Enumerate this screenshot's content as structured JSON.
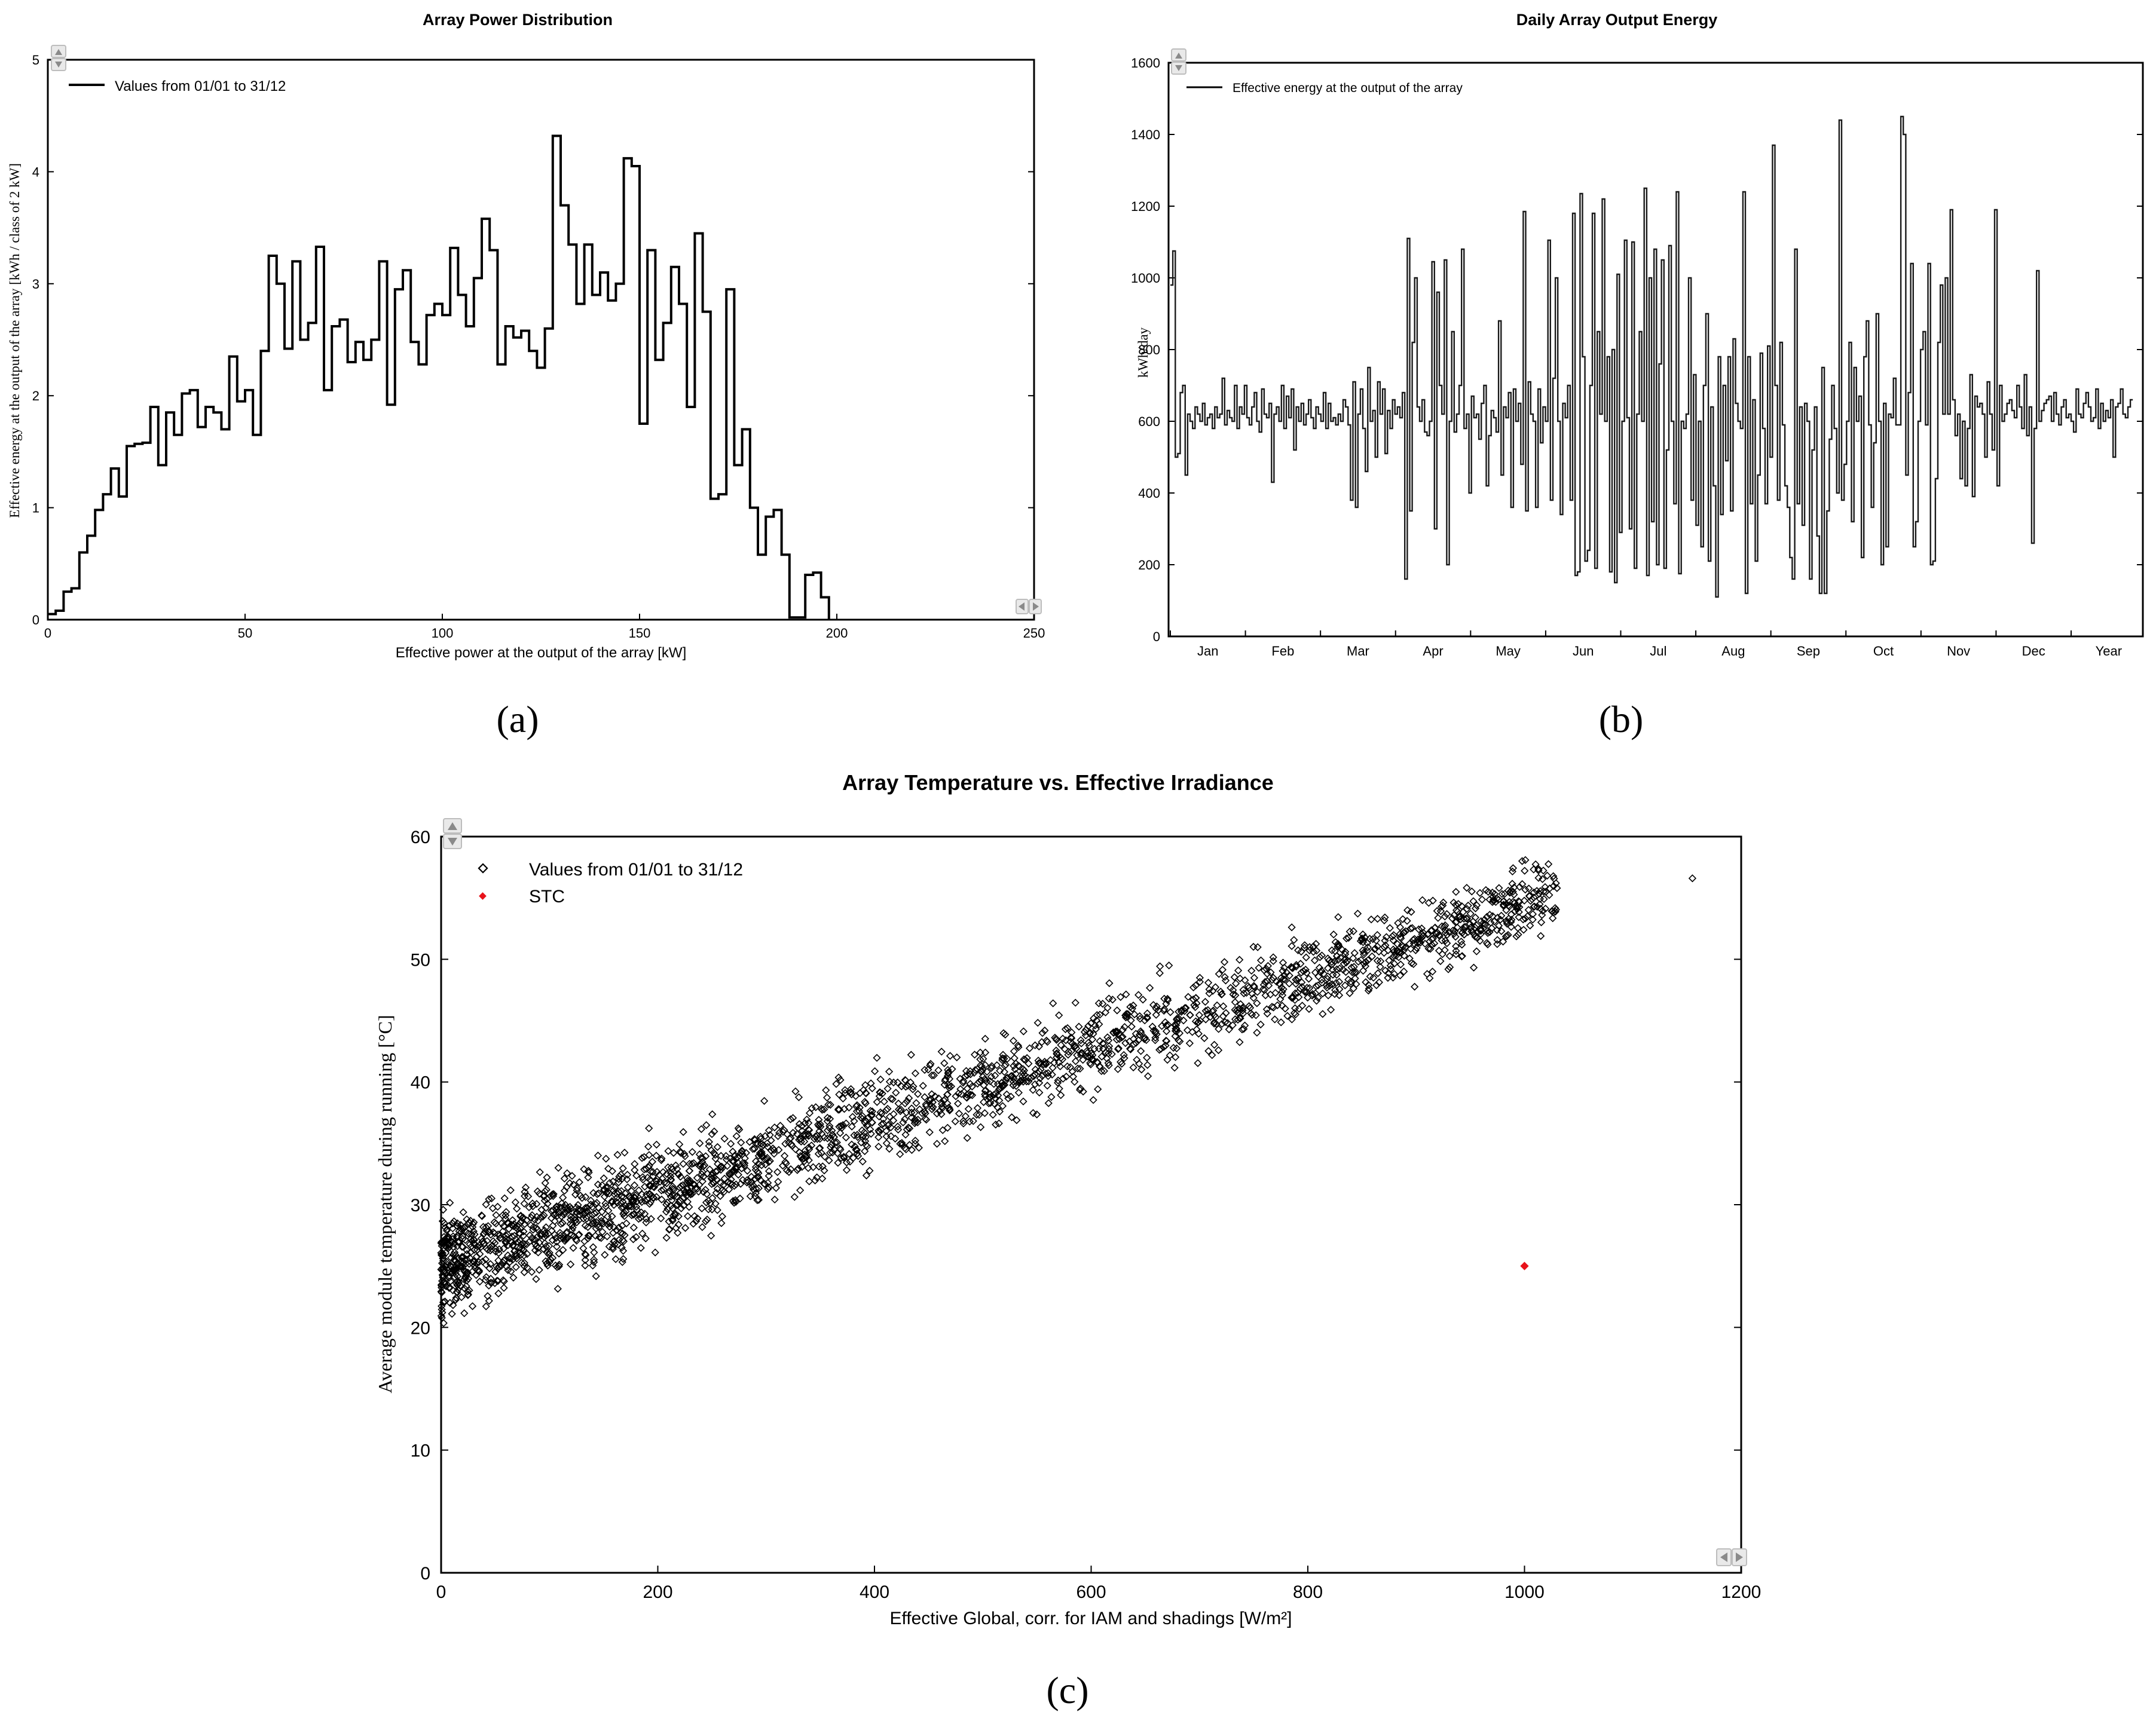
{
  "chart_data": [
    {
      "type": "histogram",
      "title": "Array Power Distribution",
      "xlabel": "Effective power at the output of the array [kW]",
      "ylabel": "Effective energy at the output of the array [kWh / class of 2 kW]",
      "xlim": [
        0,
        250
      ],
      "ylim": [
        0,
        5
      ],
      "xticks": [
        0,
        50,
        100,
        150,
        200,
        250
      ],
      "yticks": [
        0,
        1,
        2,
        3,
        4,
        5
      ],
      "legend": "Values from 01/01 to 31/12",
      "legend_position": "top-left",
      "bin_width": 2,
      "x_start": 0,
      "values": [
        0.05,
        0.08,
        0.25,
        0.28,
        0.6,
        0.75,
        0.98,
        1.12,
        1.35,
        1.1,
        1.55,
        1.57,
        1.58,
        1.9,
        1.38,
        1.85,
        1.65,
        2.02,
        2.05,
        1.72,
        1.9,
        1.85,
        1.7,
        2.35,
        1.95,
        2.05,
        1.65,
        2.4,
        3.25,
        3.0,
        2.42,
        3.2,
        2.5,
        2.65,
        3.33,
        2.05,
        2.62,
        2.68,
        2.3,
        2.48,
        2.32,
        2.5,
        3.2,
        1.92,
        2.95,
        3.12,
        2.48,
        2.28,
        2.72,
        2.82,
        2.72,
        3.32,
        2.9,
        2.62,
        3.05,
        3.58,
        3.3,
        2.28,
        2.62,
        2.52,
        2.58,
        2.4,
        2.25,
        2.6,
        4.32,
        3.7,
        3.35,
        2.82,
        3.35,
        2.9,
        3.1,
        2.85,
        3.0,
        4.12,
        4.05,
        1.75,
        3.3,
        2.32,
        2.65,
        3.15,
        2.82,
        1.9,
        3.45,
        2.75,
        1.08,
        1.12,
        2.95,
        1.38,
        1.7,
        1.0,
        0.58,
        0.92,
        0.98,
        0.58,
        0.02,
        0.02,
        0.4,
        0.42,
        0.2
      ],
      "line_color": "#000000"
    },
    {
      "type": "line",
      "title": "Daily Array Output Energy",
      "xlabel": "",
      "ylabel": "kWh/day",
      "legend": "Effective energy at the output of the array",
      "legend_position": "top-left",
      "ylim": [
        0,
        1600
      ],
      "yticks": [
        0,
        200,
        400,
        600,
        800,
        1000,
        1200,
        1400,
        1600
      ],
      "month_labels": [
        "Jan",
        "Feb",
        "Mar",
        "Apr",
        "May",
        "Jun",
        "Jul",
        "Aug",
        "Sep",
        "Oct",
        "Nov",
        "Dec",
        "Year"
      ],
      "x_unit": "day of year",
      "values": [
        980,
        1075,
        500,
        510,
        680,
        700,
        450,
        620,
        600,
        580,
        640,
        620,
        600,
        650,
        590,
        610,
        620,
        580,
        640,
        610,
        620,
        720,
        590,
        630,
        610,
        600,
        700,
        580,
        640,
        620,
        700,
        610,
        590,
        640,
        680,
        600,
        570,
        690,
        620,
        610,
        650,
        430,
        620,
        640,
        600,
        700,
        580,
        670,
        610,
        690,
        520,
        640,
        600,
        650,
        590,
        620,
        660,
        610,
        580,
        640,
        620,
        600,
        680,
        580,
        650,
        600,
        610,
        590,
        620,
        600,
        660,
        640,
        590,
        380,
        710,
        360,
        620,
        690,
        580,
        460,
        750,
        600,
        630,
        500,
        710,
        620,
        690,
        510,
        630,
        580,
        660,
        620,
        640,
        610,
        680,
        160,
        1110,
        350,
        820,
        1000,
        640,
        600,
        660,
        570,
        560,
        600,
        1045,
        300,
        960,
        700,
        620,
        1050,
        200,
        600,
        850,
        570,
        620,
        700,
        1080,
        580,
        620,
        400,
        670,
        610,
        620,
        550,
        650,
        700,
        420,
        560,
        630,
        610,
        570,
        880,
        450,
        640,
        610,
        680,
        360,
        690,
        600,
        650,
        480,
        1185,
        350,
        710,
        620,
        600,
        360,
        690,
        540,
        640,
        600,
        1105,
        380,
        720,
        1000,
        600,
        340,
        650,
        610,
        700,
        380,
        1180,
        170,
        180,
        1235,
        780,
        210,
        240,
        700,
        1180,
        190,
        850,
        620,
        1220,
        600,
        780,
        180,
        800,
        150,
        1010,
        290,
        600,
        1105,
        610,
        300,
        1100,
        190,
        620,
        850,
        600,
        1250,
        170,
        1000,
        320,
        1080,
        200,
        760,
        1050,
        190,
        520,
        1090,
        600,
        370,
        1240,
        175,
        600,
        580,
        620,
        1000,
        380,
        730,
        310,
        600,
        250,
        700,
        900,
        210,
        640,
        420,
        110,
        780,
        340,
        700,
        490,
        780,
        350,
        830,
        650,
        600,
        580,
        1240,
        120,
        780,
        370,
        660,
        210,
        450,
        790,
        580,
        370,
        810,
        500,
        1370,
        700,
        380,
        820,
        590,
        420,
        360,
        220,
        160,
        1080,
        370,
        640,
        310,
        650,
        600,
        160,
        520,
        640,
        280,
        120,
        750,
        120,
        350,
        550,
        700,
        580,
        400,
        1440,
        380,
        480,
        600,
        820,
        320,
        750,
        600,
        670,
        220,
        780,
        880,
        590,
        360,
        540,
        900,
        600,
        200,
        650,
        250,
        620,
        610,
        720,
        590,
        590,
        1450,
        1400,
        450,
        680,
        1040,
        250,
        320,
        600,
        800,
        850,
        590,
        1040,
        200,
        210,
        440,
        820,
        980,
        620,
        1000,
        620,
        1190,
        660,
        560,
        620,
        440,
        600,
        420,
        580,
        730,
        390,
        670,
        640,
        650,
        620,
        500,
        710,
        620,
        520,
        1190,
        420,
        700,
        600,
        620,
        650,
        660,
        630,
        610,
        700,
        640,
        580,
        730,
        560,
        640,
        260,
        580,
        1020,
        600,
        630,
        650,
        660,
        670,
        600,
        680,
        620,
        590,
        640,
        660,
        610,
        620,
        600,
        570,
        690,
        620,
        610,
        650,
        680,
        640,
        600,
        610,
        690,
        580,
        650,
        600,
        630,
        610,
        660,
        500,
        640,
        650,
        690,
        620,
        610,
        640,
        660
      ],
      "line_color": "#000000"
    },
    {
      "type": "scatter",
      "title": "Array Temperature vs. Effective Irradiance",
      "xlabel": "Effective Global, corr. for IAM and shadings [W/m²]",
      "ylabel": "Average module temperature during running [°C]",
      "xlim": [
        0,
        1200
      ],
      "ylim": [
        0,
        60
      ],
      "xticks": [
        0,
        200,
        400,
        600,
        800,
        1000,
        1200
      ],
      "yticks": [
        0,
        10,
        20,
        30,
        40,
        50,
        60
      ],
      "legend_position": "top-left",
      "series": [
        {
          "name": "Values from 01/01 to 31/12",
          "marker": "open-diamond",
          "color": "#000000",
          "trend": {
            "x0": 0,
            "y0": 25,
            "x1": 1030,
            "y1": 55.5,
            "point_count": 2600,
            "spread_c": 3.6
          },
          "outliers": [
            [
              1155,
              56.6
            ],
            [
              1030,
              55.8
            ],
            [
              1015,
              51.9
            ],
            [
              985,
              55.6
            ]
          ]
        },
        {
          "name": "STC",
          "marker": "filled-diamond",
          "color": "#e8131b",
          "points": [
            [
              1000,
              25
            ]
          ]
        }
      ]
    }
  ],
  "captions": {
    "a": "(a)",
    "b": "(b)",
    "c": "(c)"
  }
}
